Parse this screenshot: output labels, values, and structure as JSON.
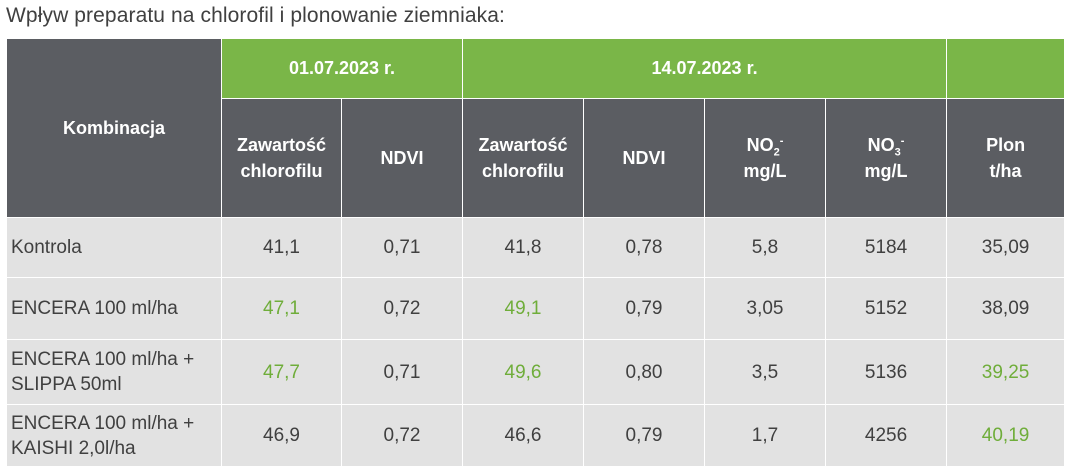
{
  "title": "Wpływ preparatu na chlorofil i plonowanie ziemniaka:",
  "colors": {
    "header_gray": "#5b5d62",
    "header_green": "#7ab648",
    "row_bg": "#e2e2e2",
    "highlight_text": "#6fad3a",
    "text": "#404040"
  },
  "header": {
    "combination": "Kombinacja",
    "date1": "01.07.2023 r.",
    "date2": "14.07.2023 r.",
    "chlorophyll_line1": "Zawartość",
    "chlorophyll_line2": "chlorofilu",
    "ndvi": "NDVI",
    "no2_base": "NO",
    "no2_sub": "2",
    "no2_sup": "-",
    "no3_base": "NO",
    "no3_sub": "3",
    "no3_sup": "-",
    "mgl": "mg/L",
    "yield_line1": "Plon",
    "yield_line2": "t/ha"
  },
  "rows": [
    {
      "name_line1": "Kontrola",
      "name_line2": "",
      "chl1": "41,1",
      "ndvi1": "0,71",
      "chl2": "41,8",
      "ndvi2": "0,78",
      "no2": "5,8",
      "no3": "5184",
      "yield": "35,09"
    },
    {
      "name_line1": "ENCERA 100 ml/ha",
      "name_line2": "",
      "chl1": "47,1",
      "ndvi1": "0,72",
      "chl2": "49,1",
      "ndvi2": "0,79",
      "no2": "3,05",
      "no3": "5152",
      "yield": "38,09"
    },
    {
      "name_line1": "ENCERA 100 ml/ha +",
      "name_line2": "SLIPPA 50ml",
      "chl1": "47,7",
      "ndvi1": "0,71",
      "chl2": "49,6",
      "ndvi2": "0,80",
      "no2": "3,5",
      "no3": "5136",
      "yield": "39,25"
    },
    {
      "name_line1": "ENCERA 100 ml/ha +",
      "name_line2": "KAISHI 2,0l/ha",
      "chl1": "46,9",
      "ndvi1": "0,72",
      "chl2": "46,6",
      "ndvi2": "0,79",
      "no2": "1,7",
      "no3": "4256",
      "yield": "40,19"
    }
  ]
}
